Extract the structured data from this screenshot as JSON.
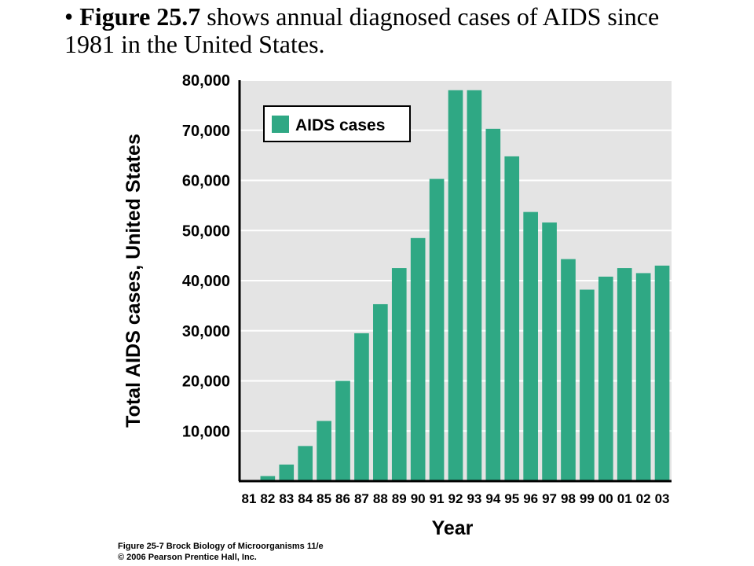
{
  "slide": {
    "bullet": "•",
    "figure_ref": "Figure 25.7",
    "text": "shows annual diagnosed cases of AIDS since 1981 in the United States."
  },
  "colors": {
    "bar": "#2fa884",
    "plot_background": "#e4e4e4",
    "gridline": "#ffffff",
    "axis": "#000000"
  },
  "chart_data": {
    "type": "bar",
    "xlabel": "Year",
    "ylabel": "Total AIDS cases, United States",
    "legend": {
      "label": "AIDS cases",
      "placement": "top-left"
    },
    "ylim": [
      0,
      80000
    ],
    "yticks": [
      10000,
      20000,
      30000,
      40000,
      50000,
      60000,
      70000,
      80000
    ],
    "ytick_labels": [
      "10,000",
      "20,000",
      "30,000",
      "40,000",
      "50,000",
      "60,000",
      "70,000",
      "80,000"
    ],
    "grid": true,
    "categories": [
      "81",
      "82",
      "83",
      "84",
      "85",
      "86",
      "87",
      "88",
      "89",
      "90",
      "91",
      "92",
      "93",
      "94",
      "95",
      "96",
      "97",
      "98",
      "99",
      "00",
      "01",
      "02",
      "03"
    ],
    "series": [
      {
        "name": "AIDS cases",
        "values": [
          0,
          1000,
          3300,
          7000,
          12000,
          20000,
          29500,
          35300,
          42500,
          48500,
          60300,
          78000,
          78000,
          70300,
          64800,
          53700,
          51600,
          44300,
          38200,
          40800,
          42500,
          41500,
          43000
        ]
      }
    ]
  },
  "credit": {
    "line1": "Figure 25-7  Brock Biology of Microorganisms 11/e",
    "line2": "© 2006 Pearson Prentice Hall, Inc."
  }
}
